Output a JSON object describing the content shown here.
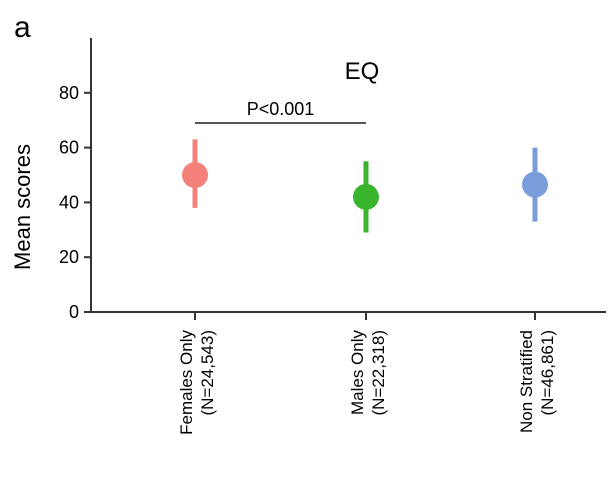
{
  "panel_label": "a",
  "chart_data": {
    "type": "scatter",
    "title": "EQ",
    "xlabel": "",
    "ylabel": "Mean scores",
    "ylim": [
      0,
      100
    ],
    "yticks": [
      0,
      20,
      40,
      60,
      80
    ],
    "grid": false,
    "categories": [
      {
        "line1": "Females Only",
        "line2": "(N=24,543)"
      },
      {
        "line1": "Males Only",
        "line2": "(N=22,318)"
      },
      {
        "line1": "Non Stratified",
        "line2": "(N=46,861)"
      }
    ],
    "points": [
      {
        "mean": 50,
        "low": 38,
        "high": 63,
        "color": "#f4817a"
      },
      {
        "mean": 42,
        "low": 29,
        "high": 55,
        "color": "#39b52d"
      },
      {
        "mean": 46.5,
        "low": 33,
        "high": 60,
        "color": "#7a9edb"
      }
    ],
    "annotation": {
      "text": "P<0.001",
      "from_category": 0,
      "to_category": 1,
      "y": 69
    }
  }
}
